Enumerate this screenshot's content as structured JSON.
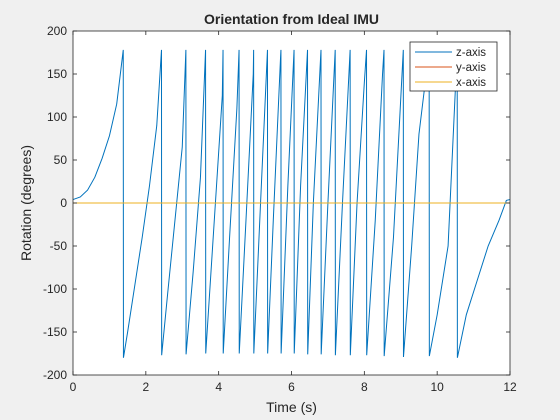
{
  "chart_data": {
    "type": "line",
    "title": "Orientation from Ideal IMU",
    "xlabel": "Time (s)",
    "ylabel": "Rotation (degrees)",
    "xlim": [
      0,
      12
    ],
    "ylim": [
      -200,
      200
    ],
    "xticks": [
      0,
      2,
      4,
      6,
      8,
      10,
      12
    ],
    "yticks": [
      -200,
      -150,
      -100,
      -50,
      0,
      50,
      100,
      150,
      200
    ],
    "grid": false,
    "legend_position": "top-right",
    "series": [
      {
        "name": "z-axis",
        "color": "#0072bd",
        "x": [
          0,
          0.2,
          0.4,
          0.6,
          0.8,
          1.0,
          1.2,
          1.38,
          1.385,
          1.5,
          1.7,
          1.9,
          2.1,
          2.3,
          2.43,
          2.435,
          2.6,
          2.8,
          3.0,
          3.1,
          3.105,
          3.3,
          3.5,
          3.64,
          3.645,
          3.85,
          4.1,
          4.12,
          4.125,
          4.3,
          4.5,
          4.56,
          4.565,
          4.75,
          4.95,
          4.96,
          4.965,
          5.15,
          5.34,
          5.345,
          5.5,
          5.7,
          5.71,
          5.715,
          5.9,
          6.07,
          6.075,
          6.25,
          6.44,
          6.445,
          6.6,
          6.8,
          6.81,
          6.815,
          7.0,
          7.2,
          7.205,
          7.4,
          7.61,
          7.615,
          7.8,
          8.0,
          8.06,
          8.065,
          8.3,
          8.5,
          8.54,
          8.545,
          8.8,
          9.07,
          9.075,
          9.3,
          9.5,
          9.7,
          9.78,
          9.785,
          10.0,
          10.3,
          10.55,
          10.555,
          10.8,
          11.1,
          11.4,
          11.7,
          11.9,
          12.0
        ],
        "y": [
          4,
          7,
          15,
          30,
          52,
          78,
          115,
          178,
          -180,
          -150,
          -95,
          -40,
          20,
          90,
          178,
          -177,
          -105,
          -20,
          65,
          178,
          -176,
          -80,
          30,
          178,
          -175,
          -40,
          125,
          178,
          -175,
          -40,
          110,
          178,
          -175,
          -20,
          150,
          178,
          -175,
          0,
          178,
          -175,
          -20,
          170,
          178,
          -175,
          20,
          178,
          -175,
          20,
          178,
          -176,
          0,
          170,
          178,
          -176,
          0,
          178,
          -177,
          0,
          178,
          -177,
          0,
          140,
          178,
          -177,
          -20,
          150,
          178,
          -178,
          -40,
          178,
          -179,
          -50,
          80,
          150,
          178,
          -178,
          -130,
          -50,
          178,
          -180,
          -130,
          -90,
          -50,
          -20,
          3,
          4
        ]
      },
      {
        "name": "y-axis",
        "color": "#d95319",
        "x": [
          0,
          12
        ],
        "y": [
          0,
          0
        ]
      },
      {
        "name": "x-axis",
        "color": "#edb120",
        "x": [
          0,
          12
        ],
        "y": [
          0,
          0
        ]
      }
    ]
  }
}
